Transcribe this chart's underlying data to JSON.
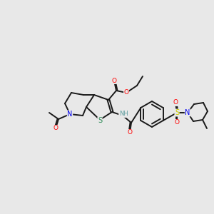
{
  "background_color": "#e8e8e8",
  "bond_color": "#1a1a1a",
  "colors": {
    "O": "#ff0000",
    "N": "#0000ee",
    "S_thio": "#2e8b57",
    "S_sulfonyl": "#cccc00",
    "NH": "#5f9ea0",
    "C": "#1a1a1a"
  },
  "figsize": [
    3.0,
    3.0
  ],
  "dpi": 100
}
